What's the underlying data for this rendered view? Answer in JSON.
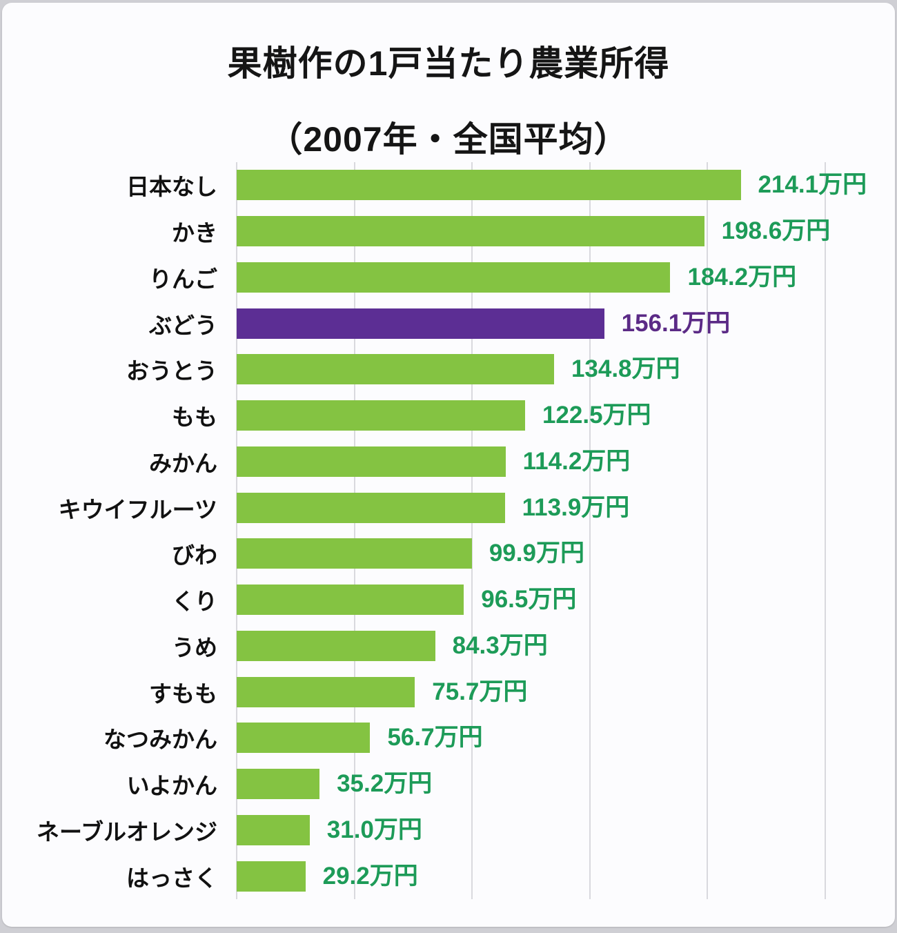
{
  "page": {
    "background_color": "#cfcfd4",
    "card_color": "#fcfcfe"
  },
  "chart_data": {
    "type": "bar",
    "orientation": "horizontal",
    "title_line1": "果樹作の1戸当たり農業所得",
    "title_line2": "（2007年・全国平均）",
    "unit": "万円",
    "xlim": [
      0,
      250
    ],
    "gridline_interval": 50,
    "grid": true,
    "legend": "none",
    "categories": [
      "日本なし",
      "かき",
      "りんご",
      "ぶどう",
      "おうとう",
      "もも",
      "みかん",
      "キウイフルーツ",
      "びわ",
      "くり",
      "うめ",
      "すもも",
      "なつみかん",
      "いよかん",
      "ネーブルオレンジ",
      "はっさく"
    ],
    "values": [
      214.1,
      198.6,
      184.2,
      156.1,
      134.8,
      122.5,
      114.2,
      113.9,
      99.9,
      96.5,
      84.3,
      75.7,
      56.7,
      35.2,
      31.0,
      29.2
    ],
    "value_labels": [
      "214.1万円",
      "198.6万円",
      "184.2万円",
      "156.1万円",
      "134.8万円",
      "122.5万円",
      "114.2万円",
      "113.9万円",
      "99.9万円",
      "96.5万円",
      "84.3万円",
      "75.7万円",
      "56.7万円",
      "35.2万円",
      "31.0万円",
      "29.2万円"
    ],
    "highlight_index": 3,
    "colors": {
      "bar_default": "#84c342",
      "bar_highlight": "#5c2e94",
      "value_text_default": "#1d9b58",
      "value_text_highlight": "#5b2a86",
      "label_text": "#111111",
      "gridline": "#d9d9de"
    }
  }
}
